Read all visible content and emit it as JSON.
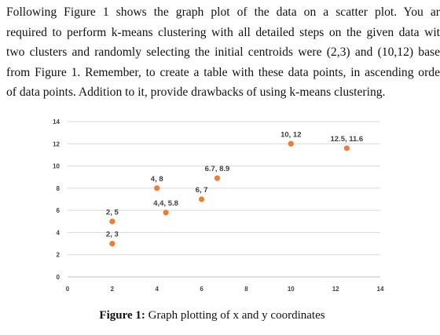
{
  "document": {
    "lines": [
      "Following Figure 1 shows the graph plot of the data on a scatter plot. You ar",
      "required to perform k-means clustering with all detailed steps on the given data wit",
      "two clusters and randomly selecting the initial centroids were (2,3) and (10,12) base",
      "from Figure 1. Remember, to create a table with these data points, in ascending orde",
      "of data points. Addition to it, provide drawbacks of using k-means clustering."
    ],
    "caption_label": "Figure 1:",
    "caption_text": " Graph plotting of x and y coordinates"
  },
  "chart_data": {
    "type": "scatter",
    "title": "",
    "xlabel": "",
    "ylabel": "",
    "xlim": [
      0,
      14
    ],
    "ylim": [
      0,
      14
    ],
    "x_ticks": [
      0,
      2,
      4,
      6,
      8,
      10,
      12,
      14
    ],
    "y_ticks": [
      0,
      2,
      4,
      6,
      8,
      10,
      12,
      14
    ],
    "grid": "horizontal",
    "marker_color": "#ED7D31",
    "points": [
      {
        "x": 2,
        "y": 3,
        "label": "2, 3"
      },
      {
        "x": 2,
        "y": 5,
        "label": "2, 5"
      },
      {
        "x": 4,
        "y": 8,
        "label": "4, 8"
      },
      {
        "x": 4.4,
        "y": 5.8,
        "label": "4,4, 5.8"
      },
      {
        "x": 6,
        "y": 7,
        "label": "6, 7"
      },
      {
        "x": 6.7,
        "y": 8.9,
        "label": "6.7, 8.9"
      },
      {
        "x": 10,
        "y": 12,
        "label": "10, 12"
      },
      {
        "x": 12.5,
        "y": 11.6,
        "label": "12.5, 11.6"
      }
    ]
  }
}
